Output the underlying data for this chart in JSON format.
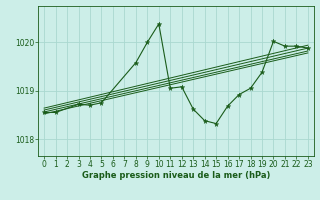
{
  "xlabel": "Graphe pression niveau de la mer (hPa)",
  "background_color": "#cceee8",
  "grid_color": "#aad8d0",
  "line_color": "#1a5c1a",
  "xlim": [
    -0.5,
    23.5
  ],
  "ylim": [
    1017.65,
    1020.75
  ],
  "yticks": [
    1018,
    1019,
    1020
  ],
  "xticks": [
    0,
    1,
    2,
    3,
    4,
    5,
    6,
    7,
    8,
    9,
    10,
    11,
    12,
    13,
    14,
    15,
    16,
    17,
    18,
    19,
    20,
    21,
    22,
    23
  ],
  "series1_x": [
    0,
    1,
    3,
    4,
    5,
    8,
    9,
    10,
    11,
    12,
    13,
    14,
    15,
    16,
    17,
    18,
    19,
    20,
    21,
    22,
    23
  ],
  "series1_y": [
    1018.55,
    1018.55,
    1018.72,
    1018.7,
    1018.75,
    1019.58,
    1020.0,
    1020.38,
    1019.05,
    1019.08,
    1018.62,
    1018.38,
    1018.32,
    1018.68,
    1018.92,
    1019.05,
    1019.38,
    1020.02,
    1019.92,
    1019.92,
    1019.88
  ],
  "trend_lines": [
    [
      [
        0,
        23
      ],
      [
        1018.52,
        1019.78
      ]
    ],
    [
      [
        0,
        23
      ],
      [
        1018.56,
        1019.82
      ]
    ],
    [
      [
        0,
        23
      ],
      [
        1018.6,
        1019.88
      ]
    ],
    [
      [
        0,
        23
      ],
      [
        1018.64,
        1019.94
      ]
    ]
  ]
}
